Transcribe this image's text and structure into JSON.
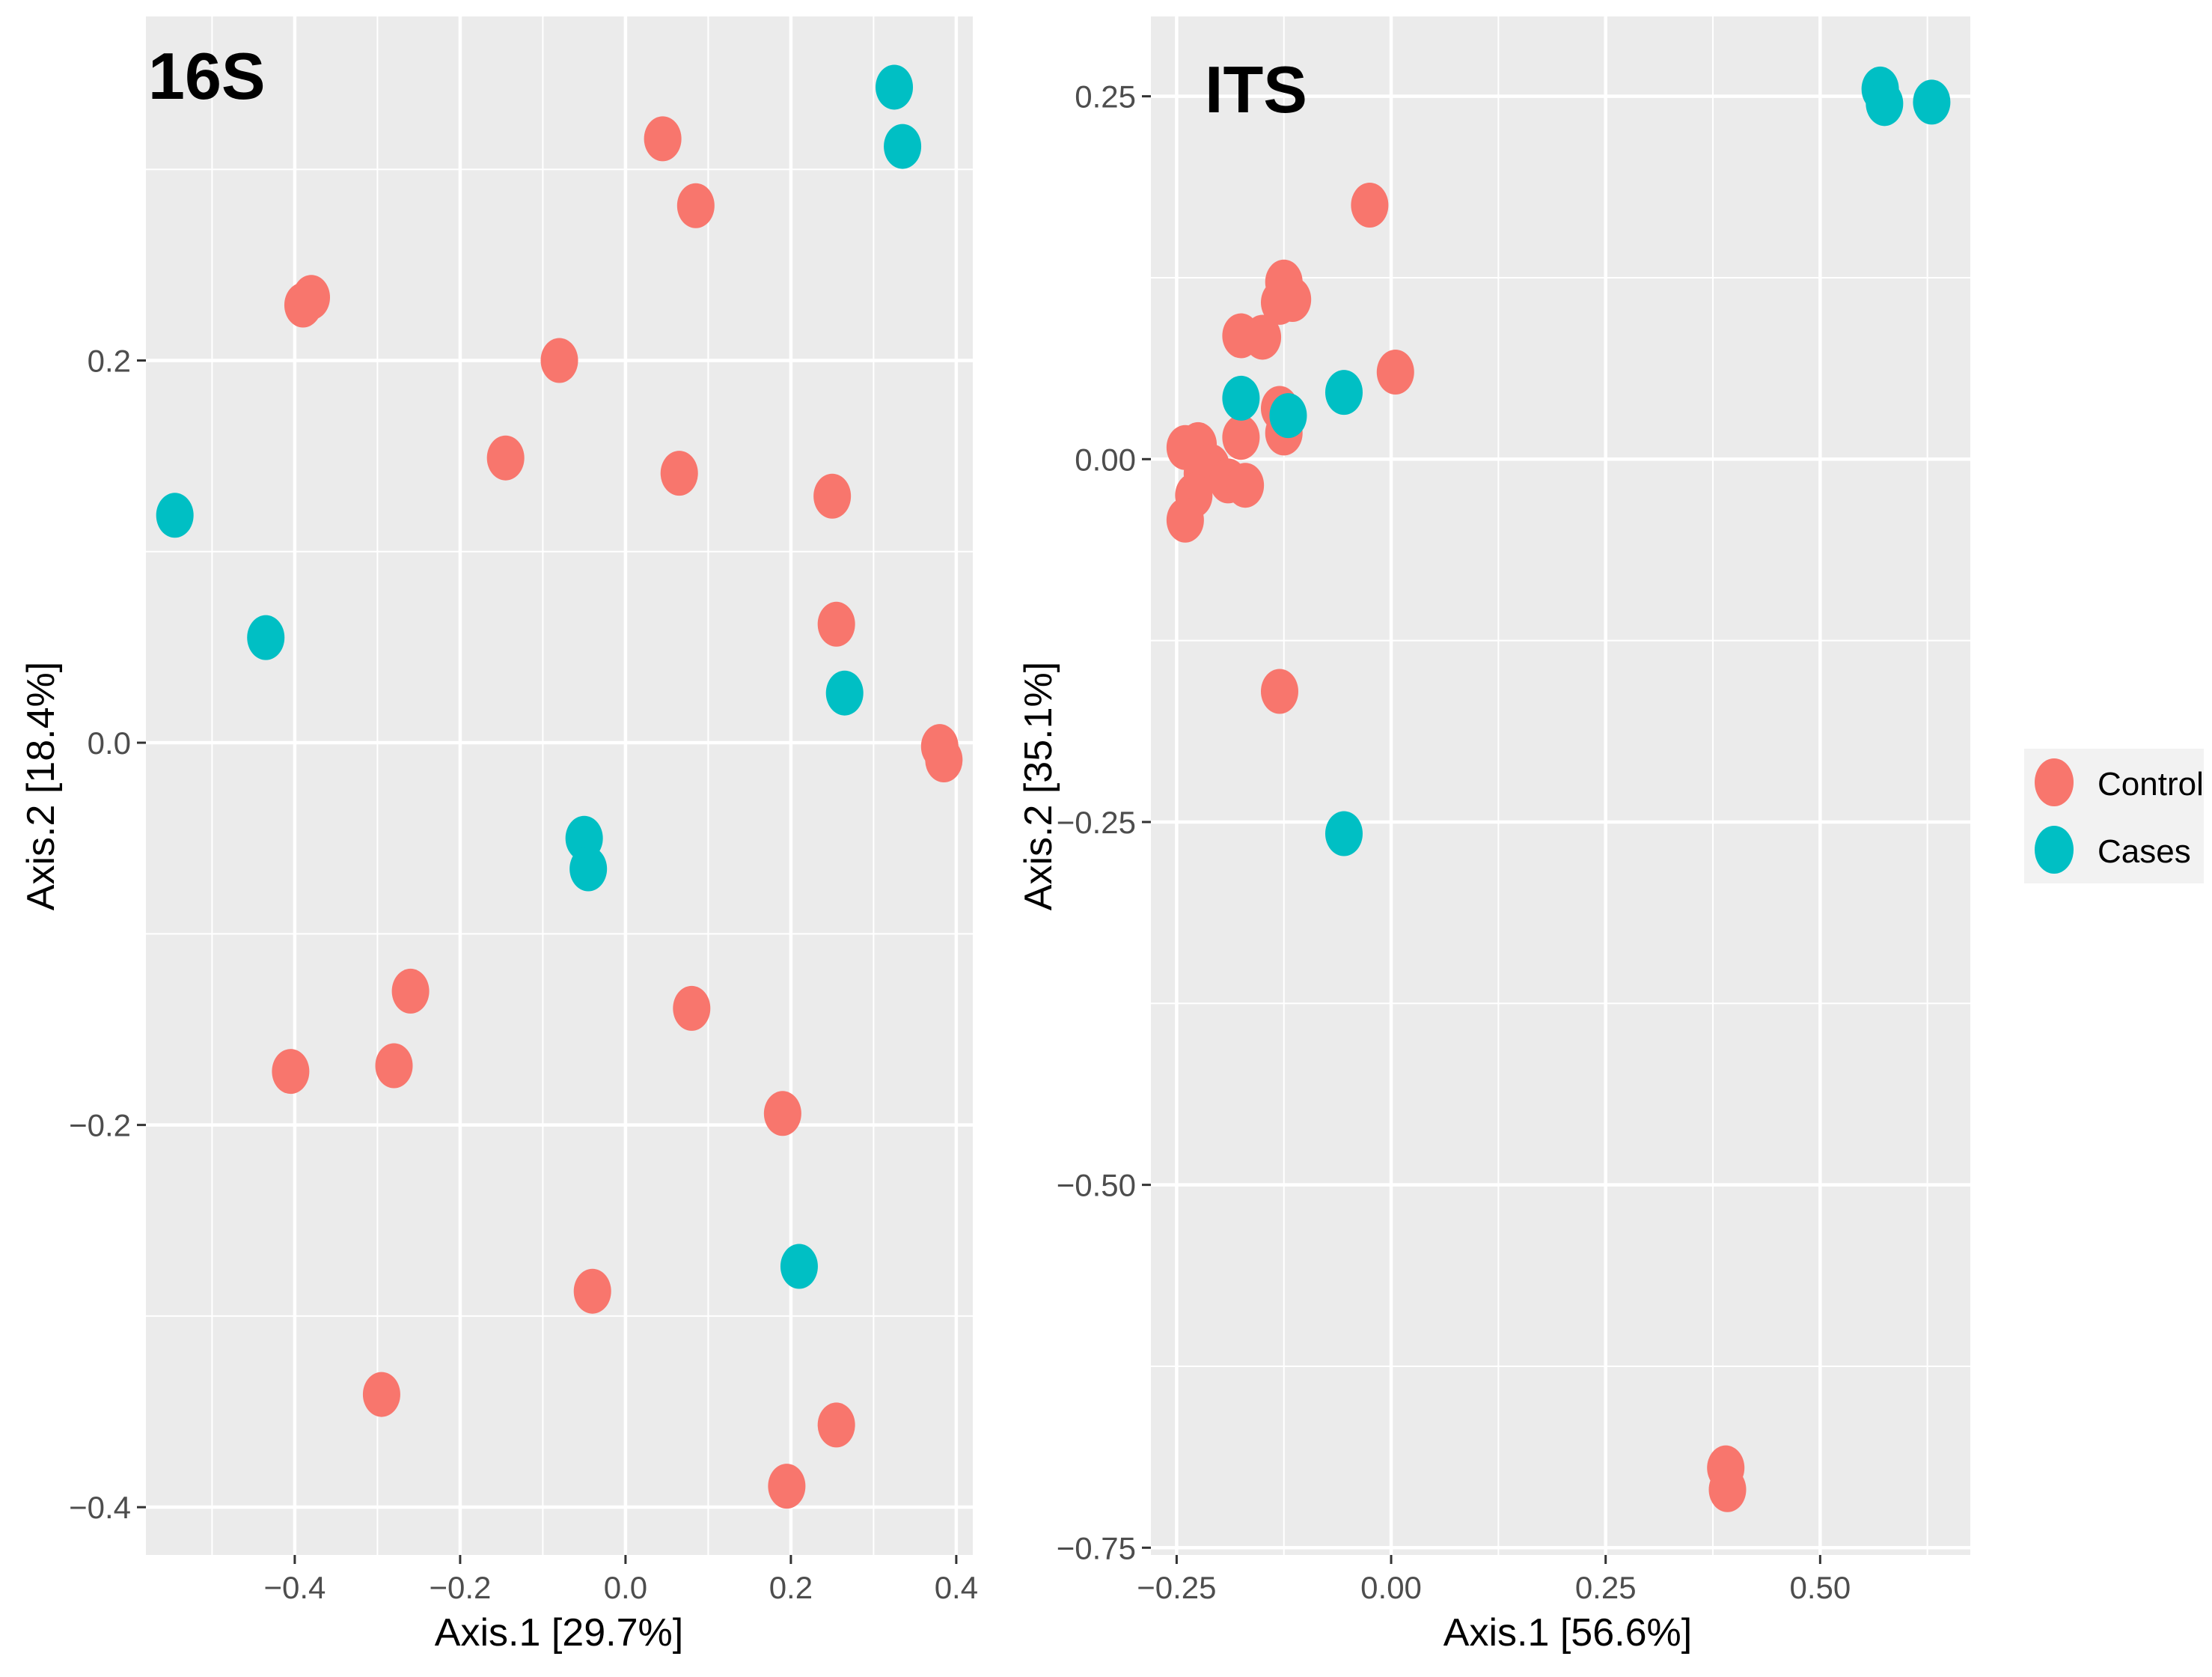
{
  "colors": {
    "Control": "#F8766D",
    "Cases": "#00BFC4",
    "panel_bg": "#EBEBEB",
    "grid": "#FFFFFF",
    "legend_bg": "#F2F2F2"
  },
  "legend": {
    "position": "right",
    "entries": [
      "Control",
      "Cases"
    ]
  },
  "chart_data": [
    {
      "type": "scatter",
      "title": "16S",
      "xlabel": "Axis.1   [29.7%]",
      "ylabel": "Axis.2   [18.4%]",
      "xlim": [
        -0.58,
        0.42
      ],
      "ylim": [
        -0.425,
        0.38
      ],
      "xticks": [
        -0.4,
        -0.2,
        0.0,
        0.2,
        0.4
      ],
      "xtick_labels": [
        "−0.4",
        "−0.2",
        "0.0",
        "0.2",
        "0.4"
      ],
      "yticks": [
        -0.4,
        -0.2,
        0.0,
        0.2
      ],
      "ytick_labels": [
        "−0.4",
        "−0.2",
        "0.0",
        "0.2"
      ],
      "series": [
        {
          "name": "Control",
          "points": [
            [
              0.045,
              0.316
            ],
            [
              0.085,
              0.281
            ],
            [
              -0.39,
              0.229
            ],
            [
              -0.38,
              0.233
            ],
            [
              -0.08,
              0.2
            ],
            [
              -0.145,
              0.149
            ],
            [
              0.065,
              0.141
            ],
            [
              0.25,
              0.129
            ],
            [
              0.255,
              0.062
            ],
            [
              0.38,
              -0.002
            ],
            [
              0.385,
              -0.009
            ],
            [
              -0.26,
              -0.13
            ],
            [
              0.08,
              -0.139
            ],
            [
              -0.405,
              -0.172
            ],
            [
              -0.28,
              -0.169
            ],
            [
              0.19,
              -0.194
            ],
            [
              -0.04,
              -0.287
            ],
            [
              -0.295,
              -0.341
            ],
            [
              0.255,
              -0.357
            ],
            [
              0.195,
              -0.389
            ]
          ]
        },
        {
          "name": "Cases",
          "points": [
            [
              0.325,
              0.343
            ],
            [
              0.335,
              0.312
            ],
            [
              -0.545,
              0.119
            ],
            [
              -0.435,
              0.055
            ],
            [
              0.265,
              0.026
            ],
            [
              -0.05,
              -0.05
            ],
            [
              -0.045,
              -0.066
            ],
            [
              0.21,
              -0.274
            ]
          ]
        }
      ]
    },
    {
      "type": "scatter",
      "title": "ITS",
      "xlabel": "Axis.1   [56.6%]",
      "ylabel": "Axis.2   [35.1%]",
      "xlim": [
        -0.28,
        0.675
      ],
      "ylim": [
        -0.755,
        0.305
      ],
      "xticks": [
        -0.25,
        0.0,
        0.25,
        0.5
      ],
      "xtick_labels": [
        "−0.25",
        "0.00",
        "0.25",
        "0.50"
      ],
      "yticks": [
        -0.75,
        -0.5,
        -0.25,
        0.0,
        0.25
      ],
      "ytick_labels": [
        "−0.75",
        "−0.50",
        "−0.25",
        "0.00",
        "0.25"
      ],
      "series": [
        {
          "name": "Control",
          "points": [
            [
              -0.025,
              0.175
            ],
            [
              -0.125,
              0.122
            ],
            [
              -0.115,
              0.11
            ],
            [
              -0.13,
              0.108
            ],
            [
              -0.175,
              0.085
            ],
            [
              -0.15,
              0.084
            ],
            [
              0.005,
              0.06
            ],
            [
              -0.13,
              0.035
            ],
            [
              -0.175,
              0.015
            ],
            [
              -0.125,
              0.018
            ],
            [
              -0.24,
              0.008
            ],
            [
              -0.225,
              0.01
            ],
            [
              -0.21,
              -0.005
            ],
            [
              -0.22,
              -0.01
            ],
            [
              -0.19,
              -0.015
            ],
            [
              -0.17,
              -0.018
            ],
            [
              -0.23,
              -0.025
            ],
            [
              -0.24,
              -0.042
            ],
            [
              -0.13,
              -0.16
            ],
            [
              0.39,
              -0.695
            ],
            [
              0.392,
              -0.71
            ]
          ]
        },
        {
          "name": "Cases",
          "points": [
            [
              0.57,
              0.255
            ],
            [
              0.575,
              0.245
            ],
            [
              0.63,
              0.246
            ],
            [
              -0.175,
              0.042
            ],
            [
              -0.055,
              0.046
            ],
            [
              -0.12,
              0.03
            ],
            [
              -0.055,
              -0.258
            ]
          ]
        }
      ]
    }
  ]
}
